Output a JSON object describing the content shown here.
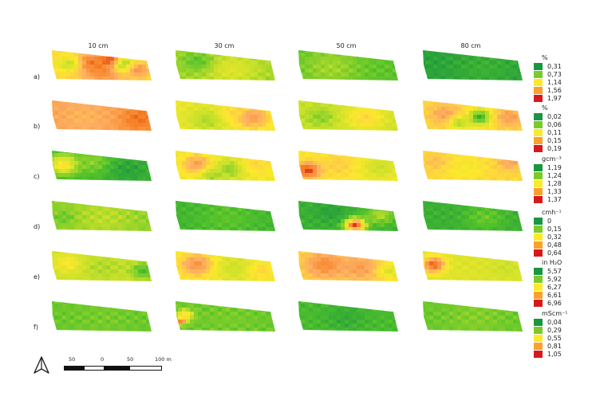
{
  "columns": [
    "10 cm",
    "30 cm",
    "50 cm",
    "80 cm"
  ],
  "rows": [
    "a)",
    "b)",
    "c)",
    "d)",
    "e)",
    "f)"
  ],
  "legend_scale": [
    "#1a9641",
    "#52c22b",
    "#c8e02a",
    "#fde92c",
    "#fdae61",
    "#f57d22",
    "#d7191c"
  ],
  "legends": [
    {
      "unit": "%",
      "items": [
        {
          "label": "0,31",
          "color": "#1a9641"
        },
        {
          "label": "0,73",
          "color": "#7cc92a"
        },
        {
          "label": "1,14",
          "color": "#fde92c"
        },
        {
          "label": "1,56",
          "color": "#f9a12c"
        },
        {
          "label": "1,97",
          "color": "#d7191c"
        }
      ]
    },
    {
      "unit": "%",
      "items": [
        {
          "label": "0,02",
          "color": "#1a9641"
        },
        {
          "label": "0,06",
          "color": "#7cc92a"
        },
        {
          "label": "0,11",
          "color": "#fde92c"
        },
        {
          "label": "0,15",
          "color": "#f9a12c"
        },
        {
          "label": "0,19",
          "color": "#d7191c"
        }
      ]
    },
    {
      "unit": "gcm⁻³",
      "items": [
        {
          "label": "1,19",
          "color": "#1a9641"
        },
        {
          "label": "1,24",
          "color": "#7cc92a"
        },
        {
          "label": "1,28",
          "color": "#fde92c"
        },
        {
          "label": "1,33",
          "color": "#f9a12c"
        },
        {
          "label": "1,37",
          "color": "#d7191c"
        }
      ]
    },
    {
      "unit": "cmh⁻¹",
      "items": [
        {
          "label": "0",
          "color": "#1a9641"
        },
        {
          "label": "0,15",
          "color": "#7cc92a"
        },
        {
          "label": "0,32",
          "color": "#fde92c"
        },
        {
          "label": "0,48",
          "color": "#f9a12c"
        },
        {
          "label": "0,64",
          "color": "#d7191c"
        }
      ]
    },
    {
      "unit": "in H₂O",
      "items": [
        {
          "label": "5,57",
          "color": "#1a9641"
        },
        {
          "label": "5,92",
          "color": "#7cc92a"
        },
        {
          "label": "6,27",
          "color": "#fde92c"
        },
        {
          "label": "6,61",
          "color": "#f9a12c"
        },
        {
          "label": "6,96",
          "color": "#d7191c"
        }
      ]
    },
    {
      "unit": "mScm⁻¹",
      "items": [
        {
          "label": "0,04",
          "color": "#1a9641"
        },
        {
          "label": "0,29",
          "color": "#7cc92a"
        },
        {
          "label": "0,55",
          "color": "#fde92c"
        },
        {
          "label": "0,81",
          "color": "#f9a12c"
        },
        {
          "label": "1,05",
          "color": "#d7191c"
        }
      ]
    }
  ],
  "panels": [
    [
      {
        "base": 0.55,
        "blobs": [
          [
            0.5,
            0.6,
            0.22,
            0.8
          ],
          [
            0.35,
            0.35,
            0.12,
            0.85
          ],
          [
            0.7,
            0.4,
            0.12,
            0.25
          ],
          [
            0.85,
            0.6,
            0.1,
            0.75
          ],
          [
            0.15,
            0.4,
            0.12,
            0.35
          ],
          [
            0.55,
            0.25,
            0.1,
            0.9
          ]
        ]
      },
      {
        "base": 0.28,
        "blobs": [
          [
            0.55,
            0.6,
            0.25,
            0.4
          ],
          [
            0.2,
            0.3,
            0.15,
            0.18
          ]
        ]
      },
      {
        "base": 0.18,
        "blobs": [
          [
            0.3,
            0.5,
            0.3,
            0.28
          ]
        ]
      },
      {
        "base": 0.05,
        "blobs": [
          [
            0.6,
            0.5,
            0.3,
            0.1
          ]
        ]
      }
    ],
    [
      {
        "base": 0.7,
        "blobs": [
          [
            0.85,
            0.55,
            0.2,
            0.85
          ],
          [
            0.3,
            0.5,
            0.25,
            0.65
          ]
        ]
      },
      {
        "base": 0.45,
        "blobs": [
          [
            0.3,
            0.6,
            0.2,
            0.3
          ],
          [
            0.75,
            0.5,
            0.18,
            0.72
          ],
          [
            0.55,
            0.3,
            0.12,
            0.55
          ]
        ]
      },
      {
        "base": 0.35,
        "blobs": [
          [
            0.65,
            0.5,
            0.2,
            0.55
          ],
          [
            0.2,
            0.5,
            0.15,
            0.25
          ]
        ]
      },
      {
        "base": 0.55,
        "blobs": [
          [
            0.55,
            0.5,
            0.12,
            0.1
          ],
          [
            0.2,
            0.4,
            0.15,
            0.7
          ],
          [
            0.85,
            0.5,
            0.14,
            0.72
          ],
          [
            0.35,
            0.7,
            0.1,
            0.3
          ]
        ]
      }
    ],
    [
      {
        "base": 0.12,
        "blobs": [
          [
            0.1,
            0.4,
            0.15,
            0.55
          ],
          [
            0.4,
            0.3,
            0.2,
            0.25
          ],
          [
            0.75,
            0.6,
            0.2,
            0.05
          ]
        ]
      },
      {
        "base": 0.45,
        "blobs": [
          [
            0.2,
            0.4,
            0.15,
            0.72
          ],
          [
            0.55,
            0.55,
            0.15,
            0.22
          ],
          [
            0.8,
            0.4,
            0.18,
            0.55
          ],
          [
            0.35,
            0.8,
            0.12,
            0.28
          ]
        ]
      },
      {
        "base": 0.5,
        "blobs": [
          [
            0.08,
            0.6,
            0.12,
            0.95
          ],
          [
            0.4,
            0.4,
            0.2,
            0.58
          ],
          [
            0.8,
            0.5,
            0.2,
            0.35
          ]
        ]
      },
      {
        "base": 0.55,
        "blobs": [
          [
            0.4,
            0.5,
            0.2,
            0.48
          ],
          [
            0.85,
            0.3,
            0.12,
            0.7
          ],
          [
            0.1,
            0.3,
            0.12,
            0.62
          ]
        ]
      }
    ],
    [
      {
        "base": 0.25,
        "blobs": [
          [
            0.5,
            0.5,
            0.3,
            0.32
          ],
          [
            0.1,
            0.5,
            0.1,
            0.2
          ]
        ]
      },
      {
        "base": 0.12,
        "blobs": [
          [
            0.5,
            0.5,
            0.3,
            0.18
          ]
        ]
      },
      {
        "base": 0.1,
        "blobs": [
          [
            0.55,
            0.75,
            0.1,
            0.95
          ],
          [
            0.3,
            0.3,
            0.15,
            0.05
          ],
          [
            0.8,
            0.4,
            0.15,
            0.3
          ]
        ]
      },
      {
        "base": 0.1,
        "blobs": [
          [
            0.6,
            0.5,
            0.2,
            0.2
          ]
        ]
      }
    ],
    [
      {
        "base": 0.35,
        "blobs": [
          [
            0.15,
            0.35,
            0.15,
            0.5
          ],
          [
            0.5,
            0.5,
            0.2,
            0.3
          ],
          [
            0.9,
            0.6,
            0.12,
            0.15
          ]
        ]
      },
      {
        "base": 0.45,
        "blobs": [
          [
            0.2,
            0.4,
            0.18,
            0.75
          ],
          [
            0.6,
            0.5,
            0.2,
            0.35
          ],
          [
            0.85,
            0.6,
            0.15,
            0.55
          ]
        ]
      },
      {
        "base": 0.55,
        "blobs": [
          [
            0.25,
            0.4,
            0.2,
            0.78
          ],
          [
            0.6,
            0.5,
            0.2,
            0.72
          ],
          [
            0.9,
            0.6,
            0.12,
            0.4
          ]
        ]
      },
      {
        "base": 0.4,
        "blobs": [
          [
            0.1,
            0.4,
            0.12,
            0.92
          ],
          [
            0.4,
            0.5,
            0.2,
            0.4
          ],
          [
            0.8,
            0.5,
            0.15,
            0.35
          ]
        ]
      }
    ],
    [
      {
        "base": 0.2,
        "blobs": [
          [
            0.5,
            0.5,
            0.3,
            0.22
          ]
        ]
      },
      {
        "base": 0.2,
        "blobs": [
          [
            0.04,
            0.6,
            0.05,
            0.98
          ],
          [
            0.08,
            0.4,
            0.08,
            0.6
          ],
          [
            0.5,
            0.5,
            0.3,
            0.22
          ]
        ]
      },
      {
        "base": 0.14,
        "blobs": [
          [
            0.45,
            0.5,
            0.2,
            0.08
          ]
        ]
      },
      {
        "base": 0.2,
        "blobs": [
          [
            0.5,
            0.5,
            0.3,
            0.24
          ]
        ]
      }
    ]
  ],
  "scale_bar": {
    "labels": [
      "50",
      "0",
      "50",
      "100 m"
    ]
  },
  "north_arrow": "north-arrow-icon"
}
